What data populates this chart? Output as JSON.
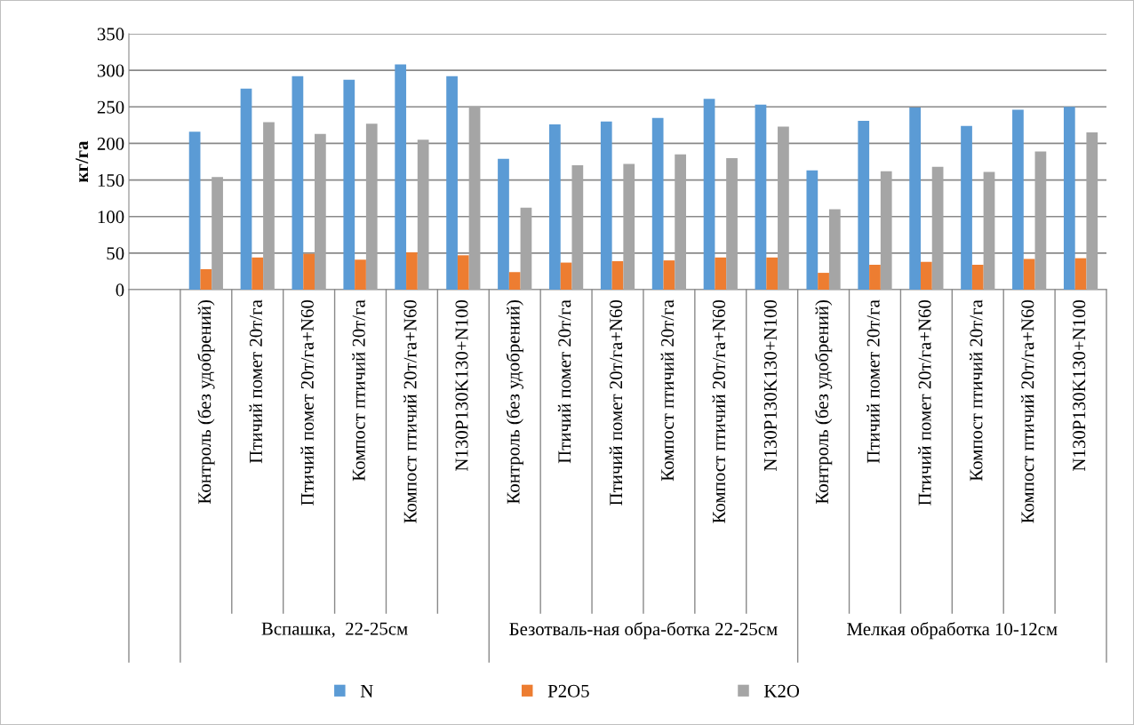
{
  "chart_data": {
    "type": "bar",
    "ylabel": "кг/га",
    "categories": [
      null,
      "Контроль (без удобрений)",
      "Птичий помет 20т/га",
      "Птичий помет 20т/га+N60",
      "Компост птичий 20т/га",
      "Компост птичий 20т/га+N60",
      "N130P130K130+N100",
      "Контроль (без удобрений)",
      "Птичий помет 20т/га",
      "Птичий помет 20т/га+N60",
      "Компост птичий 20т/га",
      "Компост птичий 20т/га+N60",
      "N130P130K130+N100",
      "Контроль (без удобрений)",
      "Птичий помет 20т/га",
      "Птичий помет 20т/га+N60",
      "Компост птичий 20т/га",
      "Компост птичий 20т/га+N60",
      "N130P130K130+N100"
    ],
    "series": [
      {
        "name": "N",
        "color": "#5b9bd5",
        "values": [
          null,
          216,
          275,
          292,
          287,
          308,
          292,
          179,
          226,
          230,
          235,
          261,
          253,
          163,
          231,
          249,
          224,
          246,
          250
        ]
      },
      {
        "name": "P2O5",
        "color": "#ed7d31",
        "values": [
          null,
          28,
          44,
          49,
          41,
          51,
          47,
          24,
          37,
          39,
          40,
          44,
          44,
          23,
          34,
          38,
          34,
          42,
          43
        ]
      },
      {
        "name": "K2O",
        "color": "#a5a5a5",
        "values": [
          null,
          154,
          229,
          213,
          227,
          205,
          251,
          112,
          170,
          172,
          185,
          180,
          223,
          110,
          162,
          168,
          161,
          189,
          215
        ]
      }
    ],
    "annotations": [
      "Вспашка,  22-25см",
      "Безотваль-ная обра-ботка 22-25см",
      "Мелкая обработка 10-12см"
    ],
    "ylim": [
      0,
      350
    ],
    "yticks": [
      0,
      50,
      100,
      150,
      200,
      250,
      300,
      350
    ],
    "grid": "y",
    "legend": "bottom"
  }
}
